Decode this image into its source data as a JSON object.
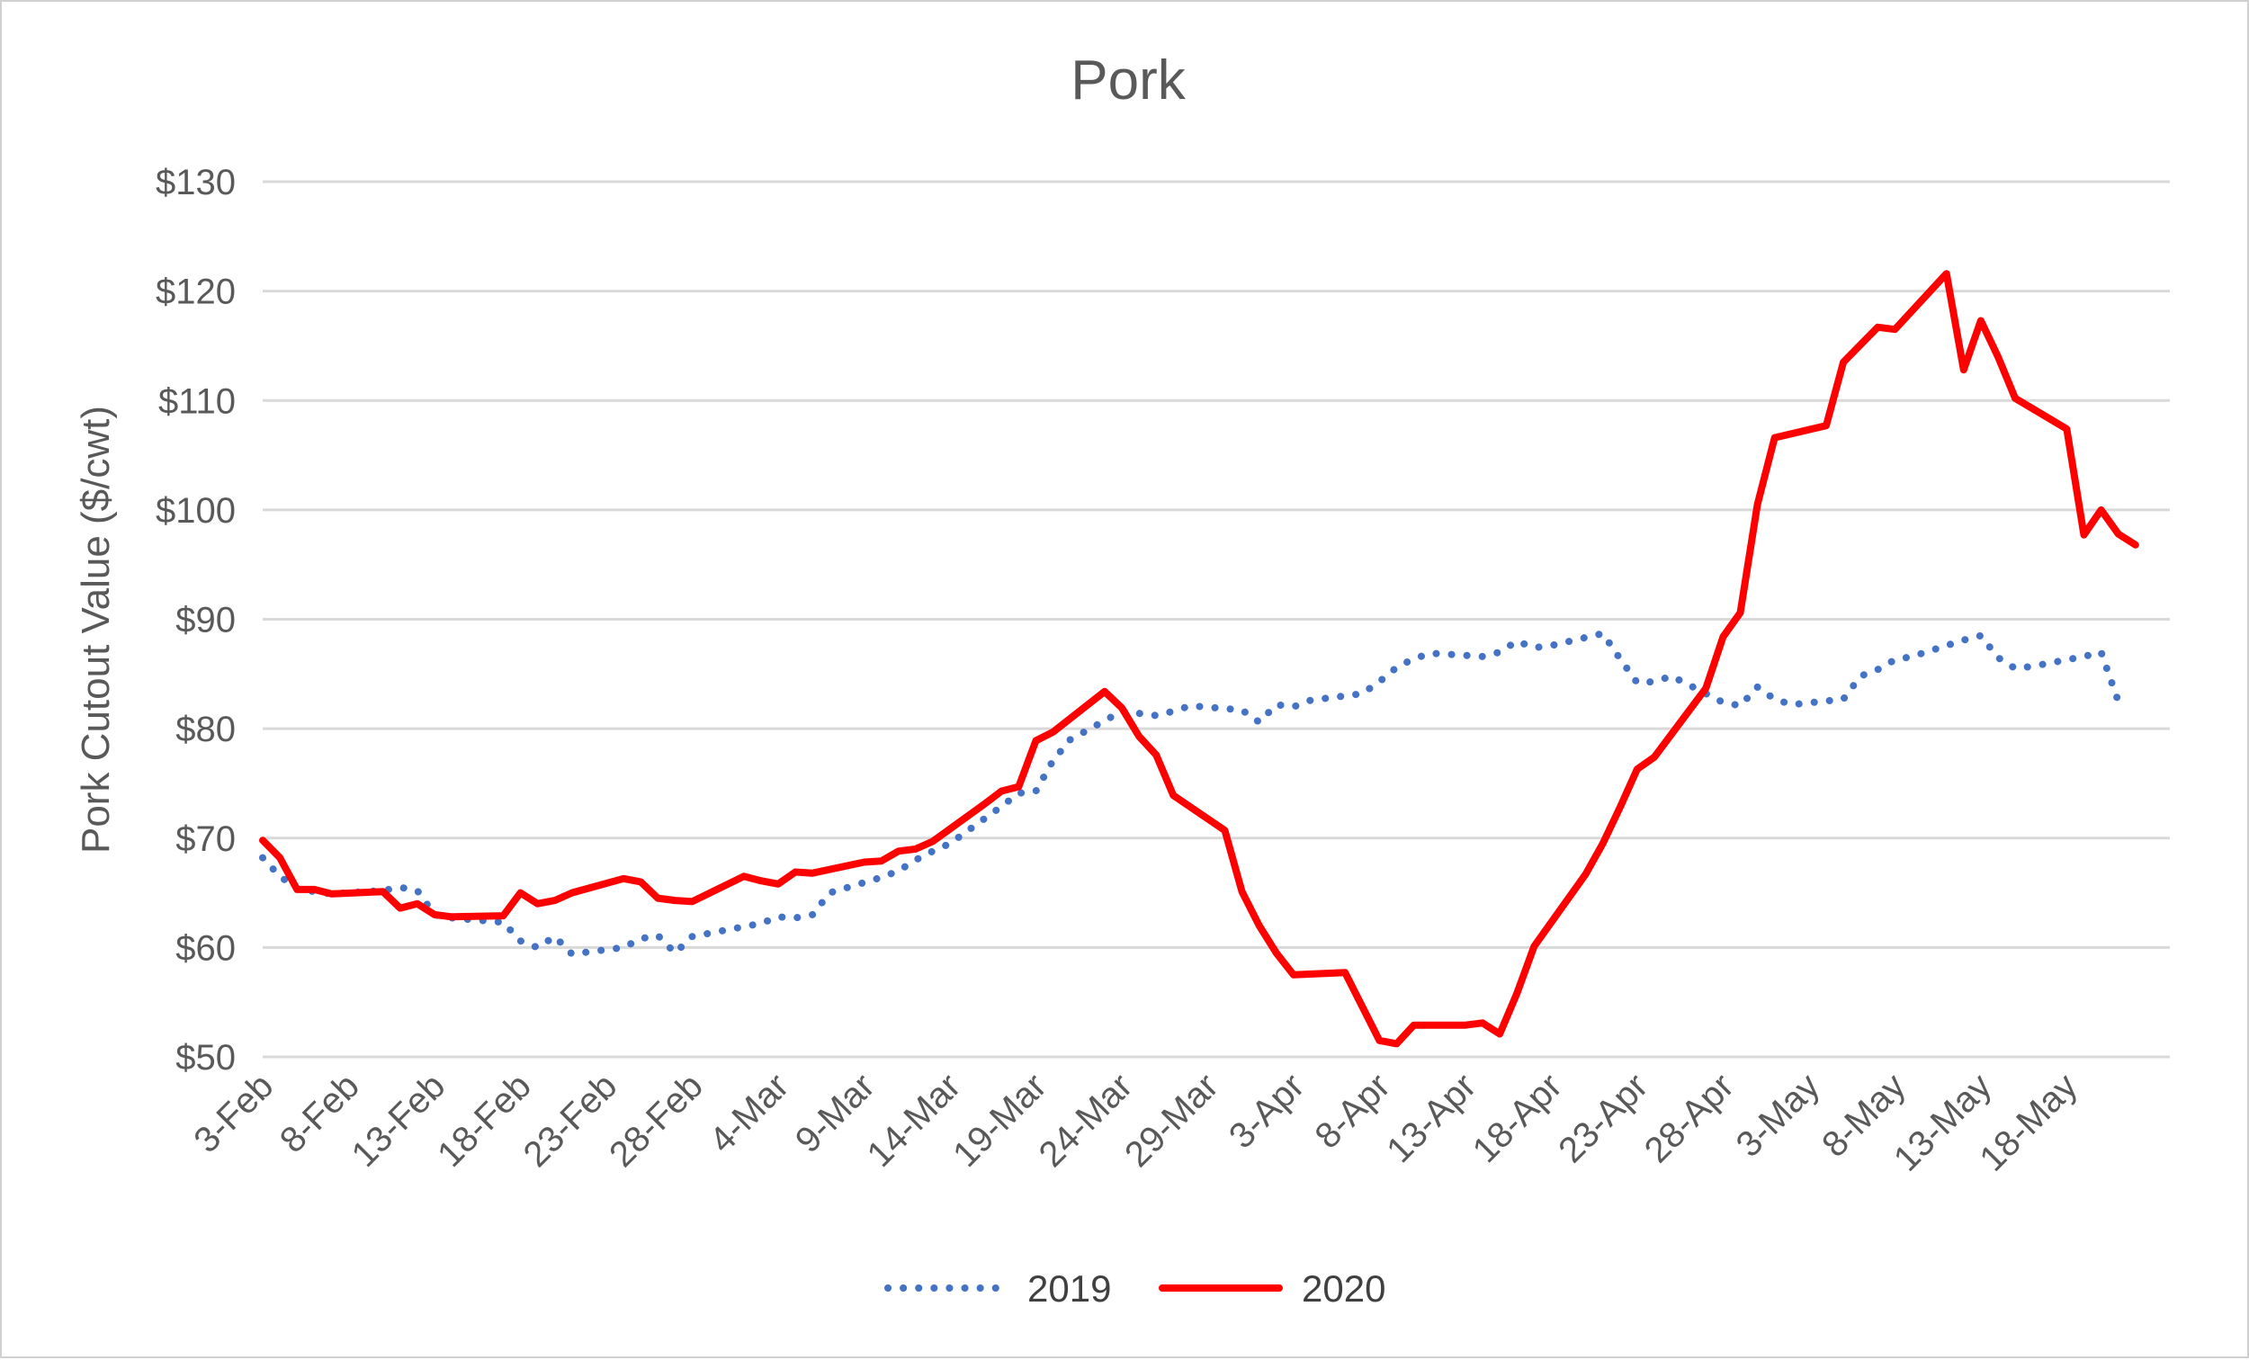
{
  "chart_data": {
    "type": "line",
    "title": "Pork",
    "xlabel": "",
    "ylabel": "Pork Cutout Value ($/cwt)",
    "ylim": [
      50,
      130
    ],
    "yticks": [
      50,
      60,
      70,
      80,
      90,
      100,
      110,
      120,
      130
    ],
    "ytick_labels": [
      "$50",
      "$60",
      "$70",
      "$80",
      "$90",
      "$100",
      "$110",
      "$120",
      "$130"
    ],
    "xlim": [
      "3-Feb",
      "24-May"
    ],
    "xticks": [
      "3-Feb",
      "8-Feb",
      "13-Feb",
      "18-Feb",
      "23-Feb",
      "28-Feb",
      "4-Mar",
      "9-Mar",
      "14-Mar",
      "19-Mar",
      "24-Mar",
      "29-Mar",
      "3-Apr",
      "8-Apr",
      "13-Apr",
      "18-Apr",
      "23-Apr",
      "28-Apr",
      "3-May",
      "8-May",
      "13-May",
      "18-May"
    ],
    "grid": true,
    "legend": "bottom",
    "series": [
      {
        "name": "2019",
        "color": "#4472c4",
        "style": "dotted",
        "x": [
          "3-Feb",
          "4-Feb",
          "5-Feb",
          "6-Feb",
          "7-Feb",
          "10-Feb",
          "11-Feb",
          "12-Feb",
          "13-Feb",
          "14-Feb",
          "17-Feb",
          "18-Feb",
          "19-Feb",
          "20-Feb",
          "21-Feb",
          "24-Feb",
          "25-Feb",
          "26-Feb",
          "27-Feb",
          "28-Feb",
          "3-Mar",
          "4-Mar",
          "5-Mar",
          "6-Mar",
          "7-Mar",
          "10-Mar",
          "11-Mar",
          "12-Mar",
          "13-Mar",
          "14-Mar",
          "17-Mar",
          "18-Mar",
          "19-Mar",
          "20-Mar",
          "21-Mar",
          "24-Mar",
          "25-Mar",
          "26-Mar",
          "27-Mar",
          "28-Mar",
          "31-Mar",
          "1-Apr",
          "2-Apr",
          "3-Apr",
          "4-Apr",
          "7-Apr",
          "8-Apr",
          "9-Apr",
          "10-Apr",
          "11-Apr",
          "14-Apr",
          "15-Apr",
          "16-Apr",
          "17-Apr",
          "18-Apr",
          "21-Apr",
          "22-Apr",
          "23-Apr",
          "24-Apr",
          "25-Apr",
          "28-Apr",
          "29-Apr",
          "30-Apr",
          "1-May",
          "2-May",
          "5-May",
          "6-May",
          "7-May",
          "8-May",
          "9-May",
          "12-May",
          "13-May",
          "14-May",
          "15-May",
          "16-May",
          "19-May",
          "20-May",
          "21-May"
        ],
        "y": [
          68.2,
          66.5,
          65.4,
          65.1,
          64.9,
          65.2,
          65.5,
          65.2,
          63.0,
          62.7,
          62.3,
          60.6,
          60.0,
          61.0,
          59.4,
          60.0,
          60.8,
          61.1,
          59.5,
          61.0,
          62.2,
          62.8,
          62.7,
          63.0,
          65.0,
          66.4,
          67.0,
          68.0,
          68.8,
          69.5,
          72.9,
          74.1,
          74.3,
          77.1,
          79.0,
          81.6,
          81.4,
          81.2,
          81.6,
          82.1,
          81.7,
          80.6,
          82.2,
          82.0,
          82.6,
          83.2,
          84.3,
          85.6,
          86.4,
          86.9,
          86.6,
          87.0,
          88.0,
          87.4,
          87.6,
          88.7,
          86.4,
          84.2,
          84.3,
          84.8,
          82.4,
          82.1,
          83.8,
          82.7,
          82.2,
          82.7,
          84.8,
          85.4,
          86.3,
          86.6,
          88.1,
          88.5,
          86.5,
          85.5,
          85.7,
          86.6,
          87.0,
          82.5
        ]
      },
      {
        "name": "2020",
        "color": "#ff0000",
        "style": "solid",
        "x": [
          "3-Feb",
          "4-Feb",
          "5-Feb",
          "6-Feb",
          "7-Feb",
          "10-Feb",
          "11-Feb",
          "12-Feb",
          "13-Feb",
          "14-Feb",
          "17-Feb",
          "18-Feb",
          "19-Feb",
          "20-Feb",
          "21-Feb",
          "24-Feb",
          "25-Feb",
          "26-Feb",
          "27-Feb",
          "28-Feb",
          "2-Mar",
          "3-Mar",
          "4-Mar",
          "5-Mar",
          "6-Mar",
          "9-Mar",
          "10-Mar",
          "11-Mar",
          "12-Mar",
          "13-Mar",
          "16-Mar",
          "17-Mar",
          "18-Mar",
          "19-Mar",
          "20-Mar",
          "23-Mar",
          "24-Mar",
          "25-Mar",
          "26-Mar",
          "27-Mar",
          "30-Mar",
          "31-Mar",
          "1-Apr",
          "2-Apr",
          "3-Apr",
          "6-Apr",
          "7-Apr",
          "8-Apr",
          "9-Apr",
          "10-Apr",
          "13-Apr",
          "14-Apr",
          "15-Apr",
          "16-Apr",
          "17-Apr",
          "20-Apr",
          "21-Apr",
          "22-Apr",
          "23-Apr",
          "24-Apr",
          "27-Apr",
          "28-Apr",
          "29-Apr",
          "30-Apr",
          "1-May",
          "4-May",
          "5-May",
          "6-May",
          "7-May",
          "8-May",
          "11-May",
          "12-May",
          "13-May",
          "14-May",
          "15-May",
          "18-May",
          "19-May",
          "20-May",
          "21-May",
          "22-May"
        ],
        "y": [
          69.8,
          68.2,
          65.3,
          65.3,
          64.9,
          65.1,
          63.6,
          64.0,
          63.0,
          62.8,
          62.9,
          65.0,
          64.0,
          64.3,
          65.0,
          66.3,
          66.0,
          64.5,
          64.3,
          64.2,
          66.5,
          66.1,
          65.8,
          66.9,
          66.8,
          67.8,
          67.9,
          68.8,
          69.0,
          69.7,
          73.1,
          74.3,
          74.7,
          78.9,
          79.7,
          83.4,
          81.9,
          79.3,
          77.6,
          73.9,
          70.7,
          65.1,
          62.0,
          59.5,
          57.5,
          57.7,
          54.6,
          51.5,
          51.2,
          52.9,
          52.9,
          53.1,
          52.1,
          55.8,
          60.1,
          66.7,
          69.5,
          72.8,
          76.3,
          77.4,
          83.7,
          88.4,
          90.6,
          100.5,
          106.6,
          107.7,
          113.5,
          115.1,
          116.7,
          116.5,
          121.6,
          112.8,
          117.3,
          114.0,
          110.2,
          107.4,
          97.7,
          100.0,
          97.8,
          96.8
        ]
      }
    ]
  }
}
